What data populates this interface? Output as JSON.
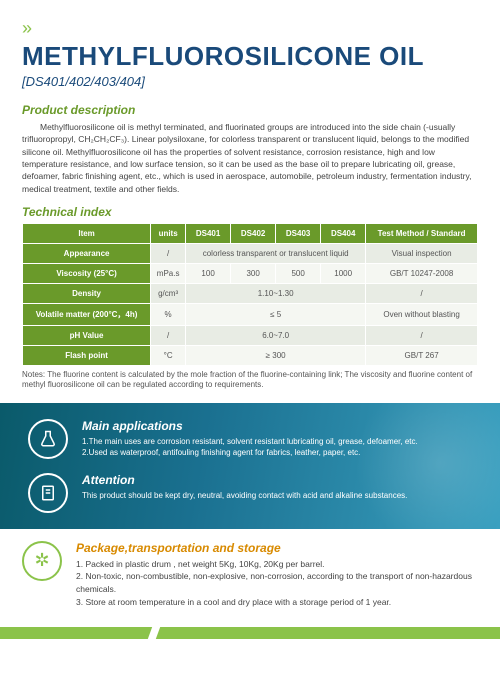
{
  "header": {
    "title": "METHYLFLUOROSILICONE OIL",
    "subtitle": "[DS401/402/403/404]"
  },
  "desc": {
    "heading": "Product description",
    "body": "Methylfluorosilicone oil is methyl terminated, and fluorinated groups are introduced into the side chain (-usually trifluoropropyl, CH₂CH₂CF₃). Linear polysiloxane, for colorless transparent or translucent liquid, belongs to the modified silicone oil. Methylfluorosilicone oil has the properties of solvent resistance, corrosion resistance, high and low temperature resistance, and low surface tension, so it can be used as the base oil to prepare lubricating oil, grease, defoamer, fabric finishing agent, etc., which is used in aerospace, automobile, petroleum industry, fermentation industry, medical treatment, textile and other fields."
  },
  "tech": {
    "heading": "Technical index",
    "columns": [
      "Item",
      "units",
      "DS401",
      "DS402",
      "DS403",
      "DS404",
      "Test Method / Standard"
    ],
    "rows": [
      {
        "item": "Appearance",
        "units": "/",
        "span": "colorless transparent or translucent liquid",
        "method": "Visual inspection"
      },
      {
        "item": "Viscosity (25°C)",
        "units": "mPa.s",
        "v": [
          "100",
          "300",
          "500",
          "1000"
        ],
        "method": "GB/T 10247-2008"
      },
      {
        "item": "Density",
        "units": "g/cm³",
        "span": "1.10~1.30",
        "method": "/"
      },
      {
        "item": "Volatile matter (200°C，4h)",
        "units": "%",
        "span": "≤ 5",
        "method": "Oven without blasting"
      },
      {
        "item": "pH Value",
        "units": "/",
        "span": "6.0~7.0",
        "method": "/"
      },
      {
        "item": "Flash point",
        "units": "°C",
        "span": "≥ 300",
        "method": "GB/T 267"
      }
    ],
    "notes": "Notes: The fluorine content is calculated by the mole fraction of the fluorine-containing link; The viscosity and fluorine content of methyl fluorosilicone oil can be regulated according to requirements."
  },
  "apps": {
    "heading": "Main applications",
    "line1": "1.The main uses are corrosion resistant, solvent resistant lubricating oil, grease, defoamer, etc.",
    "line2": "2.Used as waterproof, antifouling finishing agent for fabrics, leather, paper, etc."
  },
  "attn": {
    "heading": "Attention",
    "body": "This product should be kept dry, neutral, avoiding contact with acid and alkaline substances."
  },
  "pkg": {
    "heading": "Package,transportation and storage",
    "l1": "1. Packed in plastic drum , net weight 5Kg, 10Kg, 20Kg per barrel.",
    "l2": "2. Non-toxic, non-combustible, non-explosive, non-corrosion, according to the transport of non-hazardous chemicals.",
    "l3": "3. Store at room temperature in a cool and dry place with a storage period of 1 year."
  }
}
